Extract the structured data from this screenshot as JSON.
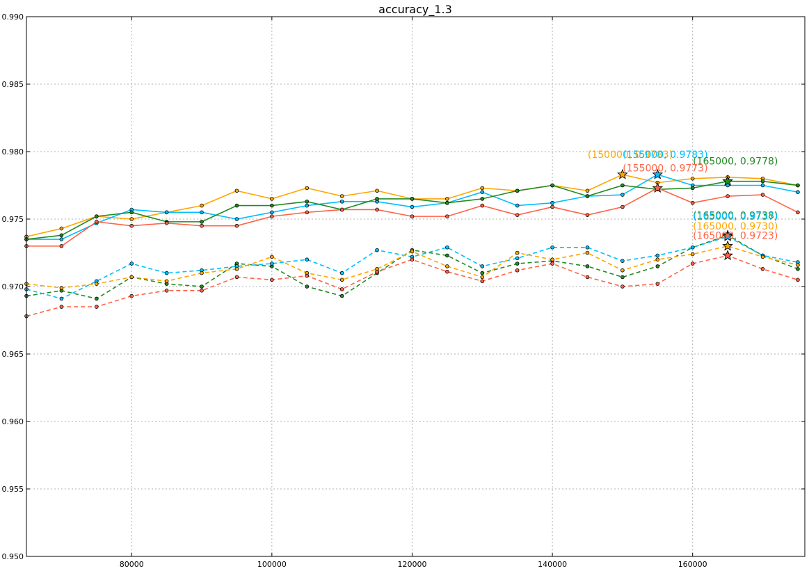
{
  "chart_data": {
    "type": "line",
    "title": "accuracy_1.3",
    "xlabel": "",
    "ylabel": "",
    "xlim": [
      65000,
      176000
    ],
    "ylim": [
      0.95,
      0.99
    ],
    "grid": true,
    "x_ticks": [
      80000,
      100000,
      120000,
      140000,
      160000
    ],
    "y_ticks": [
      0.95,
      0.955,
      0.96,
      0.965,
      0.97,
      0.975,
      0.98,
      0.985,
      0.99
    ],
    "x_tick_labels": [
      "80000",
      "100000",
      "120000",
      "140000",
      "160000"
    ],
    "y_tick_labels": [
      "0.950",
      "0.955",
      "0.960",
      "0.965",
      "0.970",
      "0.975",
      "0.980",
      "0.985",
      "0.990"
    ],
    "x": [
      65000,
      70000,
      75000,
      80000,
      85000,
      90000,
      95000,
      100000,
      105000,
      110000,
      115000,
      120000,
      125000,
      130000,
      135000,
      140000,
      145000,
      150000,
      155000,
      160000,
      165000,
      170000,
      175000
    ],
    "series": [
      {
        "color": "#ffa500",
        "style": "solid",
        "values": [
          0.9737,
          0.9743,
          0.9752,
          0.975,
          0.9755,
          0.976,
          0.9771,
          0.9765,
          0.9773,
          0.9767,
          0.9771,
          0.9765,
          0.9765,
          0.9773,
          0.9771,
          0.9775,
          0.9771,
          0.9783,
          0.9777,
          0.978,
          0.9781,
          0.978,
          0.9775
        ],
        "best": {
          "x": 150000,
          "y": 0.9783,
          "label": "(150000, 0.9783)"
        }
      },
      {
        "color": "#00bfff",
        "style": "solid",
        "values": [
          0.9735,
          0.9735,
          0.9747,
          0.9757,
          0.9755,
          0.9755,
          0.975,
          0.9755,
          0.976,
          0.9763,
          0.9763,
          0.9759,
          0.9762,
          0.977,
          0.976,
          0.9762,
          0.9767,
          0.9768,
          0.9783,
          0.9775,
          0.9775,
          0.9775,
          0.977
        ],
        "best": {
          "x": 155000,
          "y": 0.9783,
          "label": "(155000, 0.9783)"
        }
      },
      {
        "color": "#228b22",
        "style": "solid",
        "values": [
          0.9735,
          0.9738,
          0.9752,
          0.9755,
          0.9748,
          0.9748,
          0.976,
          0.976,
          0.9763,
          0.9757,
          0.9765,
          0.9765,
          0.9762,
          0.9765,
          0.9771,
          0.9775,
          0.9767,
          0.9775,
          0.9772,
          0.9773,
          0.9778,
          0.9778,
          0.9775
        ],
        "best": {
          "x": 165000,
          "y": 0.9778,
          "label": "(165000, 0.9778)"
        }
      },
      {
        "color": "#ff6347",
        "style": "solid",
        "values": [
          0.973,
          0.973,
          0.9748,
          0.9745,
          0.9747,
          0.9745,
          0.9745,
          0.9752,
          0.9755,
          0.9757,
          0.9757,
          0.9752,
          0.9752,
          0.976,
          0.9753,
          0.9759,
          0.9753,
          0.9759,
          0.9773,
          0.9762,
          0.9767,
          0.9768,
          0.9755
        ],
        "best": {
          "x": 155000,
          "y": 0.9773,
          "label": "(155000, 0.9773)"
        }
      },
      {
        "color": "#228b22",
        "style": "dashed",
        "values": [
          0.9693,
          0.9697,
          0.9691,
          0.9707,
          0.9702,
          0.97,
          0.9717,
          0.9715,
          0.97,
          0.9693,
          0.971,
          0.9727,
          0.9723,
          0.971,
          0.9717,
          0.9719,
          0.9715,
          0.9707,
          0.9715,
          0.9729,
          0.9738,
          0.9723,
          0.9713
        ],
        "best": {
          "x": 165000,
          "y": 0.9738,
          "label": "(165000, 0.9738)"
        }
      },
      {
        "color": "#00bfff",
        "style": "dashed",
        "values": [
          0.9698,
          0.9691,
          0.9704,
          0.9717,
          0.971,
          0.9712,
          0.9715,
          0.9717,
          0.972,
          0.971,
          0.9727,
          0.9722,
          0.9729,
          0.9715,
          0.9721,
          0.9729,
          0.9729,
          0.9719,
          0.9723,
          0.9729,
          0.9737,
          0.9723,
          0.9718
        ],
        "best": {
          "x": 165000,
          "y": 0.9737,
          "label": "(165000, 0.9737)"
        }
      },
      {
        "color": "#ffa500",
        "style": "dashed",
        "values": [
          0.9702,
          0.9699,
          0.9702,
          0.9707,
          0.9704,
          0.971,
          0.9713,
          0.9722,
          0.971,
          0.9705,
          0.9713,
          0.9726,
          0.9715,
          0.9707,
          0.9725,
          0.972,
          0.9725,
          0.9712,
          0.972,
          0.9724,
          0.973,
          0.9722,
          0.9716
        ],
        "best": {
          "x": 165000,
          "y": 0.973,
          "label": "(165000, 0.9730)"
        }
      },
      {
        "color": "#ff6347",
        "style": "dashed",
        "values": [
          0.9678,
          0.9685,
          0.9685,
          0.9693,
          0.9697,
          0.9697,
          0.9707,
          0.9705,
          0.9708,
          0.9698,
          0.9711,
          0.972,
          0.9711,
          0.9704,
          0.9712,
          0.9717,
          0.9707,
          0.97,
          0.9702,
          0.9717,
          0.9723,
          0.9713,
          0.9705
        ],
        "best": {
          "x": 165000,
          "y": 0.9723,
          "label": "(165000, 0.9723)"
        }
      }
    ]
  }
}
